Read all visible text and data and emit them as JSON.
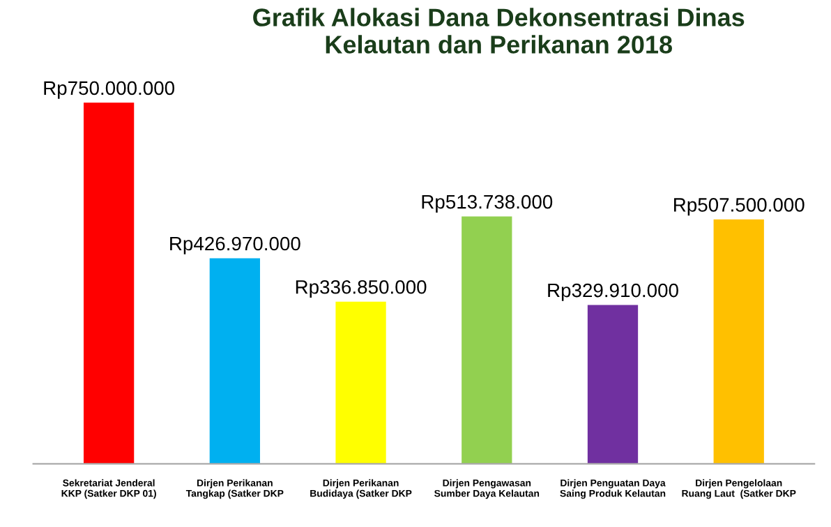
{
  "chart_data": {
    "type": "bar",
    "title": "Grafik Alokasi Dana Dekonsentrasi Dinas\nKelautan dan Perikanan 2018",
    "categories": [
      "Sekretariat Jenderal\nKKP (Satker DKP 01)",
      "Dirjen Perikanan\nTangkap (Satker DKP",
      "Dirjen Perikanan\nBudidaya (Satker DKP",
      "Dirjen Pengawasan\nSumber Daya Kelautan",
      "Dirjen Penguatan Daya\nSaing Produk Kelautan",
      "Dirjen Pengelolaan\nRuang Laut  (Satker DKP"
    ],
    "values": [
      750000000,
      426970000,
      336850000,
      513738000,
      329910000,
      507500000
    ],
    "value_labels": [
      "Rp750.000.000",
      "Rp426.970.000",
      "Rp336.850.000",
      "Rp513.738.000",
      "Rp329.910.000",
      "Rp507.500.000"
    ],
    "colors": [
      "#ff0000",
      "#00b0f0",
      "#ffff00",
      "#92d050",
      "#7030a0",
      "#ffc000"
    ],
    "grid": false,
    "legend": false
  }
}
